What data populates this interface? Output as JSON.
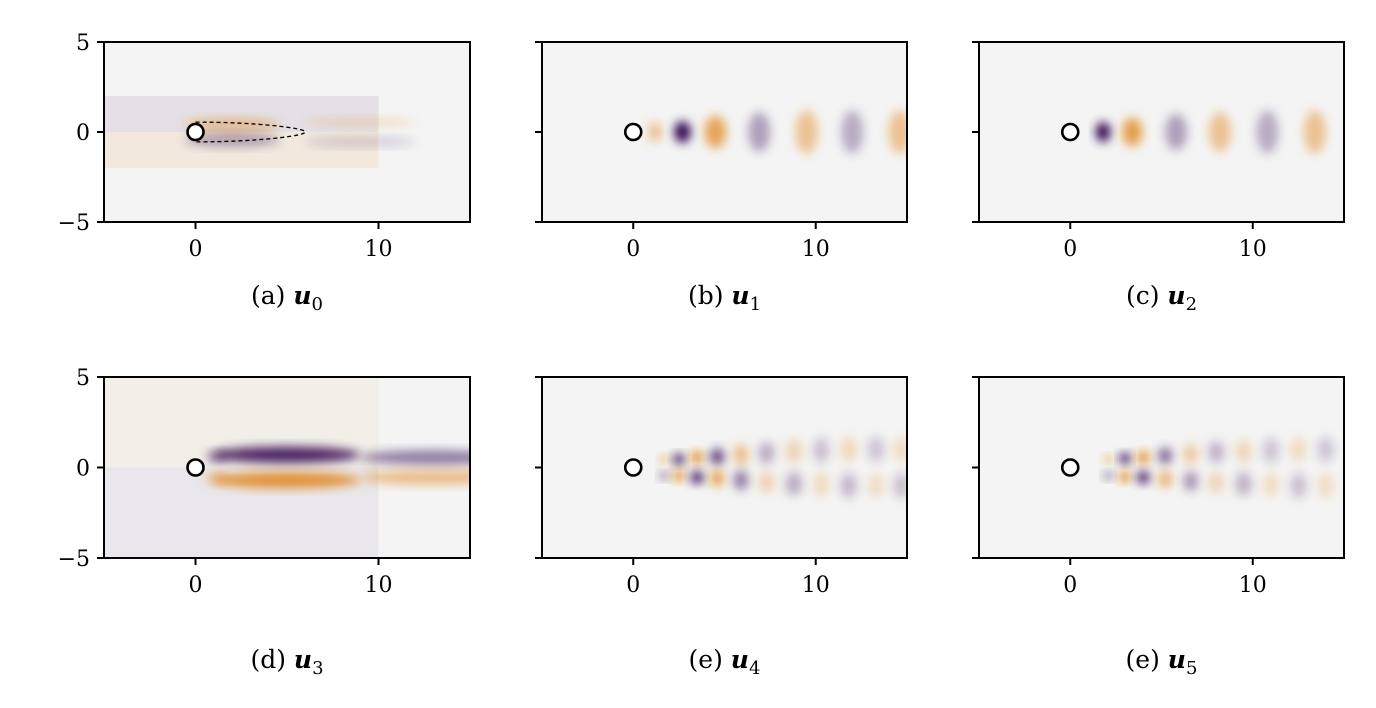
{
  "chart_data": [
    {
      "type": "heatmap",
      "caption": {
        "label": "(a)",
        "var": "u",
        "sub": "0"
      },
      "xlim": [
        -5,
        15
      ],
      "ylim": [
        -5,
        5
      ],
      "xticks": [
        0,
        10
      ],
      "yticks": [
        -5,
        0,
        5
      ],
      "show_yticklabels": true,
      "cylinder": {
        "x": 0,
        "y": 0,
        "r": 0.5
      },
      "recirculation_contour": {
        "x_end": 6,
        "half_width": 0.55
      },
      "structures": [
        {
          "x": 0,
          "y": 1,
          "w": 20,
          "h": 2,
          "sign": -1,
          "a": 0.08
        },
        {
          "x": 0,
          "y": -1,
          "w": 20,
          "h": 2,
          "sign": 1,
          "a": 0.1
        },
        {
          "x": 2,
          "y": 0.4,
          "sx": 2.6,
          "sy": 0.35,
          "sign": 1,
          "a": 0.45
        },
        {
          "x": 2,
          "y": -0.45,
          "sx": 2.6,
          "sy": 0.35,
          "sign": -1,
          "a": 0.35
        },
        {
          "x": 9,
          "y": 0.55,
          "sx": 3,
          "sy": 0.25,
          "sign": 1,
          "a": 0.2
        },
        {
          "x": 9,
          "y": -0.55,
          "sx": 3,
          "sy": 0.25,
          "sign": -1,
          "a": 0.18
        }
      ]
    },
    {
      "type": "heatmap",
      "caption": {
        "label": "(b)",
        "var": "u",
        "sub": "1"
      },
      "xlim": [
        -5,
        15
      ],
      "ylim": [
        -5,
        5
      ],
      "xticks": [
        0,
        10
      ],
      "yticks": [
        -5,
        0,
        5
      ],
      "show_yticklabels": false,
      "cylinder": {
        "x": 0,
        "y": 0,
        "r": 0.5
      },
      "structures": [
        {
          "x": 1.2,
          "y": 0,
          "sx": 0.35,
          "sy": 0.55,
          "sign": 1,
          "a": 0.5
        },
        {
          "x": 2.7,
          "y": 0,
          "sx": 0.45,
          "sy": 0.6,
          "sign": -1,
          "a": 1.0
        },
        {
          "x": 4.5,
          "y": 0,
          "sx": 0.6,
          "sy": 0.9,
          "sign": 1,
          "a": 0.7
        },
        {
          "x": 6.9,
          "y": 0,
          "sx": 0.6,
          "sy": 1.1,
          "sign": -1,
          "a": 0.35
        },
        {
          "x": 9.5,
          "y": 0,
          "sx": 0.6,
          "sy": 1.2,
          "sign": 1,
          "a": 0.45
        },
        {
          "x": 12,
          "y": 0,
          "sx": 0.6,
          "sy": 1.2,
          "sign": -1,
          "a": 0.3
        },
        {
          "x": 14.6,
          "y": 0,
          "sx": 0.6,
          "sy": 1.2,
          "sign": 1,
          "a": 0.45
        }
      ]
    },
    {
      "type": "heatmap",
      "caption": {
        "label": "(c)",
        "var": "u",
        "sub": "2"
      },
      "xlim": [
        -5,
        15
      ],
      "ylim": [
        -5,
        5
      ],
      "xticks": [
        0,
        10
      ],
      "yticks": [
        -5,
        0,
        5
      ],
      "show_yticklabels": false,
      "cylinder": {
        "x": 0,
        "y": 0,
        "r": 0.5
      },
      "structures": [
        {
          "x": 1.8,
          "y": 0,
          "sx": 0.4,
          "sy": 0.55,
          "sign": -1,
          "a": 1.0
        },
        {
          "x": 3.4,
          "y": 0,
          "sx": 0.55,
          "sy": 0.8,
          "sign": 1,
          "a": 0.75
        },
        {
          "x": 5.8,
          "y": 0,
          "sx": 0.6,
          "sy": 1.0,
          "sign": -1,
          "a": 0.35
        },
        {
          "x": 8.2,
          "y": 0,
          "sx": 0.6,
          "sy": 1.1,
          "sign": 1,
          "a": 0.45
        },
        {
          "x": 10.8,
          "y": 0,
          "sx": 0.6,
          "sy": 1.2,
          "sign": -1,
          "a": 0.3
        },
        {
          "x": 13.4,
          "y": 0,
          "sx": 0.6,
          "sy": 1.2,
          "sign": 1,
          "a": 0.45
        }
      ]
    },
    {
      "type": "heatmap",
      "caption": {
        "label": "(d)",
        "var": "u",
        "sub": "3"
      },
      "xlim": [
        -5,
        15
      ],
      "ylim": [
        -5,
        5
      ],
      "xticks": [
        0,
        10
      ],
      "yticks": [
        -5,
        0,
        5
      ],
      "show_yticklabels": true,
      "cylinder": {
        "x": 0,
        "y": 0,
        "r": 0.5
      },
      "structures": [
        {
          "x": 0,
          "y": 2.5,
          "w": 20,
          "h": 5,
          "sign": 1,
          "a": 0.05
        },
        {
          "x": 0,
          "y": -2.5,
          "w": 20,
          "h": 5,
          "sign": -1,
          "a": 0.05
        },
        {
          "x": 5,
          "y": 0.7,
          "sx": 4,
          "sy": 0.45,
          "sign": -1,
          "a": 0.85
        },
        {
          "x": 5,
          "y": -0.7,
          "sx": 4,
          "sy": 0.45,
          "sign": 1,
          "a": 0.85
        },
        {
          "x": 13,
          "y": 0.55,
          "sx": 4,
          "sy": 0.4,
          "sign": -1,
          "a": 0.5
        },
        {
          "x": 13,
          "y": -0.55,
          "sx": 4,
          "sy": 0.4,
          "sign": 1,
          "a": 0.5
        },
        {
          "x": 1.2,
          "y": 0.6,
          "sx": 0.6,
          "sy": 0.3,
          "sign": -1,
          "a": 0.5
        },
        {
          "x": 1.2,
          "y": -0.6,
          "sx": 0.6,
          "sy": 0.3,
          "sign": 1,
          "a": 0.5
        }
      ]
    },
    {
      "type": "heatmap",
      "caption": {
        "label": "(e)",
        "var": "u",
        "sub": "4"
      },
      "xlim": [
        -5,
        15
      ],
      "ylim": [
        -5,
        5
      ],
      "xticks": [
        0,
        10
      ],
      "yticks": [
        -5,
        0,
        5
      ],
      "show_yticklabels": false,
      "cylinder": {
        "x": 0,
        "y": 0,
        "r": 0.5
      },
      "structures": [
        {
          "x": 1.7,
          "y": 0.45,
          "sx": 0.25,
          "sy": 0.22,
          "sign": 1,
          "a": 0.6
        },
        {
          "x": 1.7,
          "y": -0.45,
          "sx": 0.25,
          "sy": 0.22,
          "sign": -1,
          "a": 0.6
        },
        {
          "x": 2.5,
          "y": 0.45,
          "sx": 0.3,
          "sy": 0.3,
          "sign": -1,
          "a": 1.0
        },
        {
          "x": 2.5,
          "y": -0.45,
          "sx": 0.3,
          "sy": 0.3,
          "sign": 1,
          "a": 1.0
        },
        {
          "x": 3.5,
          "y": 0.55,
          "sx": 0.35,
          "sy": 0.35,
          "sign": 1,
          "a": 0.95
        },
        {
          "x": 3.5,
          "y": -0.55,
          "sx": 0.35,
          "sy": 0.35,
          "sign": -1,
          "a": 0.95
        },
        {
          "x": 4.6,
          "y": 0.6,
          "sx": 0.38,
          "sy": 0.45,
          "sign": -1,
          "a": 0.75
        },
        {
          "x": 4.6,
          "y": -0.6,
          "sx": 0.38,
          "sy": 0.45,
          "sign": 1,
          "a": 0.75
        },
        {
          "x": 5.9,
          "y": 0.7,
          "sx": 0.4,
          "sy": 0.55,
          "sign": 1,
          "a": 0.5
        },
        {
          "x": 5.9,
          "y": -0.7,
          "sx": 0.4,
          "sy": 0.55,
          "sign": -1,
          "a": 0.5
        },
        {
          "x": 7.3,
          "y": 0.8,
          "sx": 0.45,
          "sy": 0.6,
          "sign": -1,
          "a": 0.3
        },
        {
          "x": 7.3,
          "y": -0.8,
          "sx": 0.45,
          "sy": 0.6,
          "sign": 1,
          "a": 0.3
        },
        {
          "x": 8.8,
          "y": 0.9,
          "sx": 0.45,
          "sy": 0.65,
          "sign": 1,
          "a": 0.3
        },
        {
          "x": 8.8,
          "y": -0.9,
          "sx": 0.45,
          "sy": 0.65,
          "sign": -1,
          "a": 0.3
        },
        {
          "x": 10.3,
          "y": 0.95,
          "sx": 0.45,
          "sy": 0.7,
          "sign": -1,
          "a": 0.22
        },
        {
          "x": 10.3,
          "y": -0.95,
          "sx": 0.45,
          "sy": 0.7,
          "sign": 1,
          "a": 0.22
        },
        {
          "x": 11.8,
          "y": 1.0,
          "sx": 0.45,
          "sy": 0.7,
          "sign": 1,
          "a": 0.25
        },
        {
          "x": 11.8,
          "y": -1.0,
          "sx": 0.45,
          "sy": 0.7,
          "sign": -1,
          "a": 0.25
        },
        {
          "x": 13.3,
          "y": 1.0,
          "sx": 0.45,
          "sy": 0.7,
          "sign": -1,
          "a": 0.2
        },
        {
          "x": 13.3,
          "y": -1.0,
          "sx": 0.45,
          "sy": 0.7,
          "sign": 1,
          "a": 0.2
        },
        {
          "x": 14.7,
          "y": 1.0,
          "sx": 0.45,
          "sy": 0.7,
          "sign": 1,
          "a": 0.22
        },
        {
          "x": 14.7,
          "y": -1.0,
          "sx": 0.45,
          "sy": 0.7,
          "sign": -1,
          "a": 0.22
        }
      ]
    },
    {
      "type": "heatmap",
      "caption": {
        "label": "(e)",
        "var": "u",
        "sub": "5"
      },
      "xlim": [
        -5,
        15
      ],
      "ylim": [
        -5,
        5
      ],
      "xticks": [
        0,
        10
      ],
      "yticks": [
        -5,
        0,
        5
      ],
      "show_yticklabels": false,
      "cylinder": {
        "x": 0,
        "y": 0,
        "r": 0.5
      },
      "structures": [
        {
          "x": 2.1,
          "y": 0.45,
          "sx": 0.25,
          "sy": 0.22,
          "sign": 1,
          "a": 0.6
        },
        {
          "x": 2.1,
          "y": -0.45,
          "sx": 0.25,
          "sy": 0.22,
          "sign": -1,
          "a": 0.6
        },
        {
          "x": 3.0,
          "y": 0.5,
          "sx": 0.3,
          "sy": 0.3,
          "sign": -1,
          "a": 1.0
        },
        {
          "x": 3.0,
          "y": -0.5,
          "sx": 0.3,
          "sy": 0.3,
          "sign": 1,
          "a": 1.0
        },
        {
          "x": 4.0,
          "y": 0.55,
          "sx": 0.35,
          "sy": 0.35,
          "sign": 1,
          "a": 0.9
        },
        {
          "x": 4.0,
          "y": -0.55,
          "sx": 0.35,
          "sy": 0.35,
          "sign": -1,
          "a": 0.9
        },
        {
          "x": 5.2,
          "y": 0.65,
          "sx": 0.38,
          "sy": 0.45,
          "sign": -1,
          "a": 0.6
        },
        {
          "x": 5.2,
          "y": -0.65,
          "sx": 0.38,
          "sy": 0.45,
          "sign": 1,
          "a": 0.6
        },
        {
          "x": 6.6,
          "y": 0.75,
          "sx": 0.4,
          "sy": 0.55,
          "sign": 1,
          "a": 0.4
        },
        {
          "x": 6.6,
          "y": -0.75,
          "sx": 0.4,
          "sy": 0.55,
          "sign": -1,
          "a": 0.4
        },
        {
          "x": 8.0,
          "y": 0.85,
          "sx": 0.45,
          "sy": 0.6,
          "sign": -1,
          "a": 0.28
        },
        {
          "x": 8.0,
          "y": -0.85,
          "sx": 0.45,
          "sy": 0.6,
          "sign": 1,
          "a": 0.28
        },
        {
          "x": 9.5,
          "y": 0.9,
          "sx": 0.45,
          "sy": 0.65,
          "sign": 1,
          "a": 0.28
        },
        {
          "x": 9.5,
          "y": -0.9,
          "sx": 0.45,
          "sy": 0.65,
          "sign": -1,
          "a": 0.28
        },
        {
          "x": 11.0,
          "y": 0.95,
          "sx": 0.45,
          "sy": 0.7,
          "sign": -1,
          "a": 0.2
        },
        {
          "x": 11.0,
          "y": -0.95,
          "sx": 0.45,
          "sy": 0.7,
          "sign": 1,
          "a": 0.2
        },
        {
          "x": 12.5,
          "y": 1.0,
          "sx": 0.45,
          "sy": 0.7,
          "sign": 1,
          "a": 0.22
        },
        {
          "x": 12.5,
          "y": -1.0,
          "sx": 0.45,
          "sy": 0.7,
          "sign": -1,
          "a": 0.22
        },
        {
          "x": 14.0,
          "y": 1.0,
          "sx": 0.45,
          "sy": 0.7,
          "sign": -1,
          "a": 0.2
        },
        {
          "x": 14.0,
          "y": -1.0,
          "sx": 0.45,
          "sy": 0.7,
          "sign": 1,
          "a": 0.2
        }
      ]
    }
  ],
  "colormap": {
    "positive": "#e08214",
    "negative": "#2d004b",
    "background": "#f4f4f4"
  }
}
